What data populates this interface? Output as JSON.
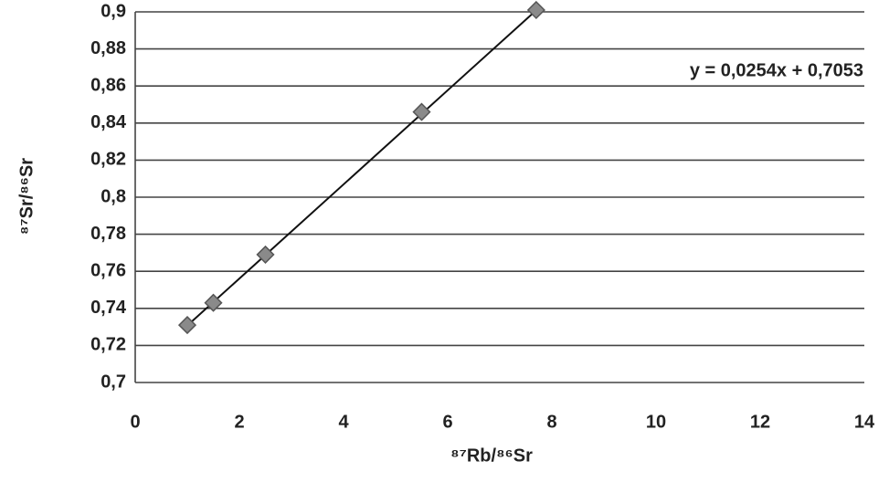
{
  "chart_data": {
    "type": "scatter",
    "x_label": "⁸⁷Rb/⁸⁶Sr",
    "y_label": "⁸⁷Sr/⁸⁶Sr",
    "annotation": "y = 0,0254x + 0,7053",
    "trendline": {
      "slope": 0.0254,
      "intercept": 0.7053,
      "color": "#111"
    },
    "x": [
      1,
      1.5,
      2.5,
      5.5,
      7.7
    ],
    "values": [
      0.731,
      0.743,
      0.769,
      0.846,
      0.901
    ],
    "color": "#8a8a8a",
    "xlim": [
      0,
      14
    ],
    "xticks": [
      0,
      2,
      4,
      6,
      8,
      10,
      12,
      14
    ],
    "ylim": [
      0.7,
      0.9
    ],
    "yticks": [
      {
        "value": 0.7,
        "label": "0,7"
      },
      {
        "value": 0.72,
        "label": "0,72"
      },
      {
        "value": 0.74,
        "label": "0,74"
      },
      {
        "value": 0.76,
        "label": "0,76"
      },
      {
        "value": 0.78,
        "label": "0,78"
      },
      {
        "value": 0.8,
        "label": "0,8"
      },
      {
        "value": 0.82,
        "label": "0,82"
      },
      {
        "value": 0.84,
        "label": "0,84"
      },
      {
        "value": 0.86,
        "label": "0,86"
      },
      {
        "value": 0.88,
        "label": "0,88"
      },
      {
        "value": 0.9,
        "label": "0,9"
      }
    ],
    "grid": true
  }
}
